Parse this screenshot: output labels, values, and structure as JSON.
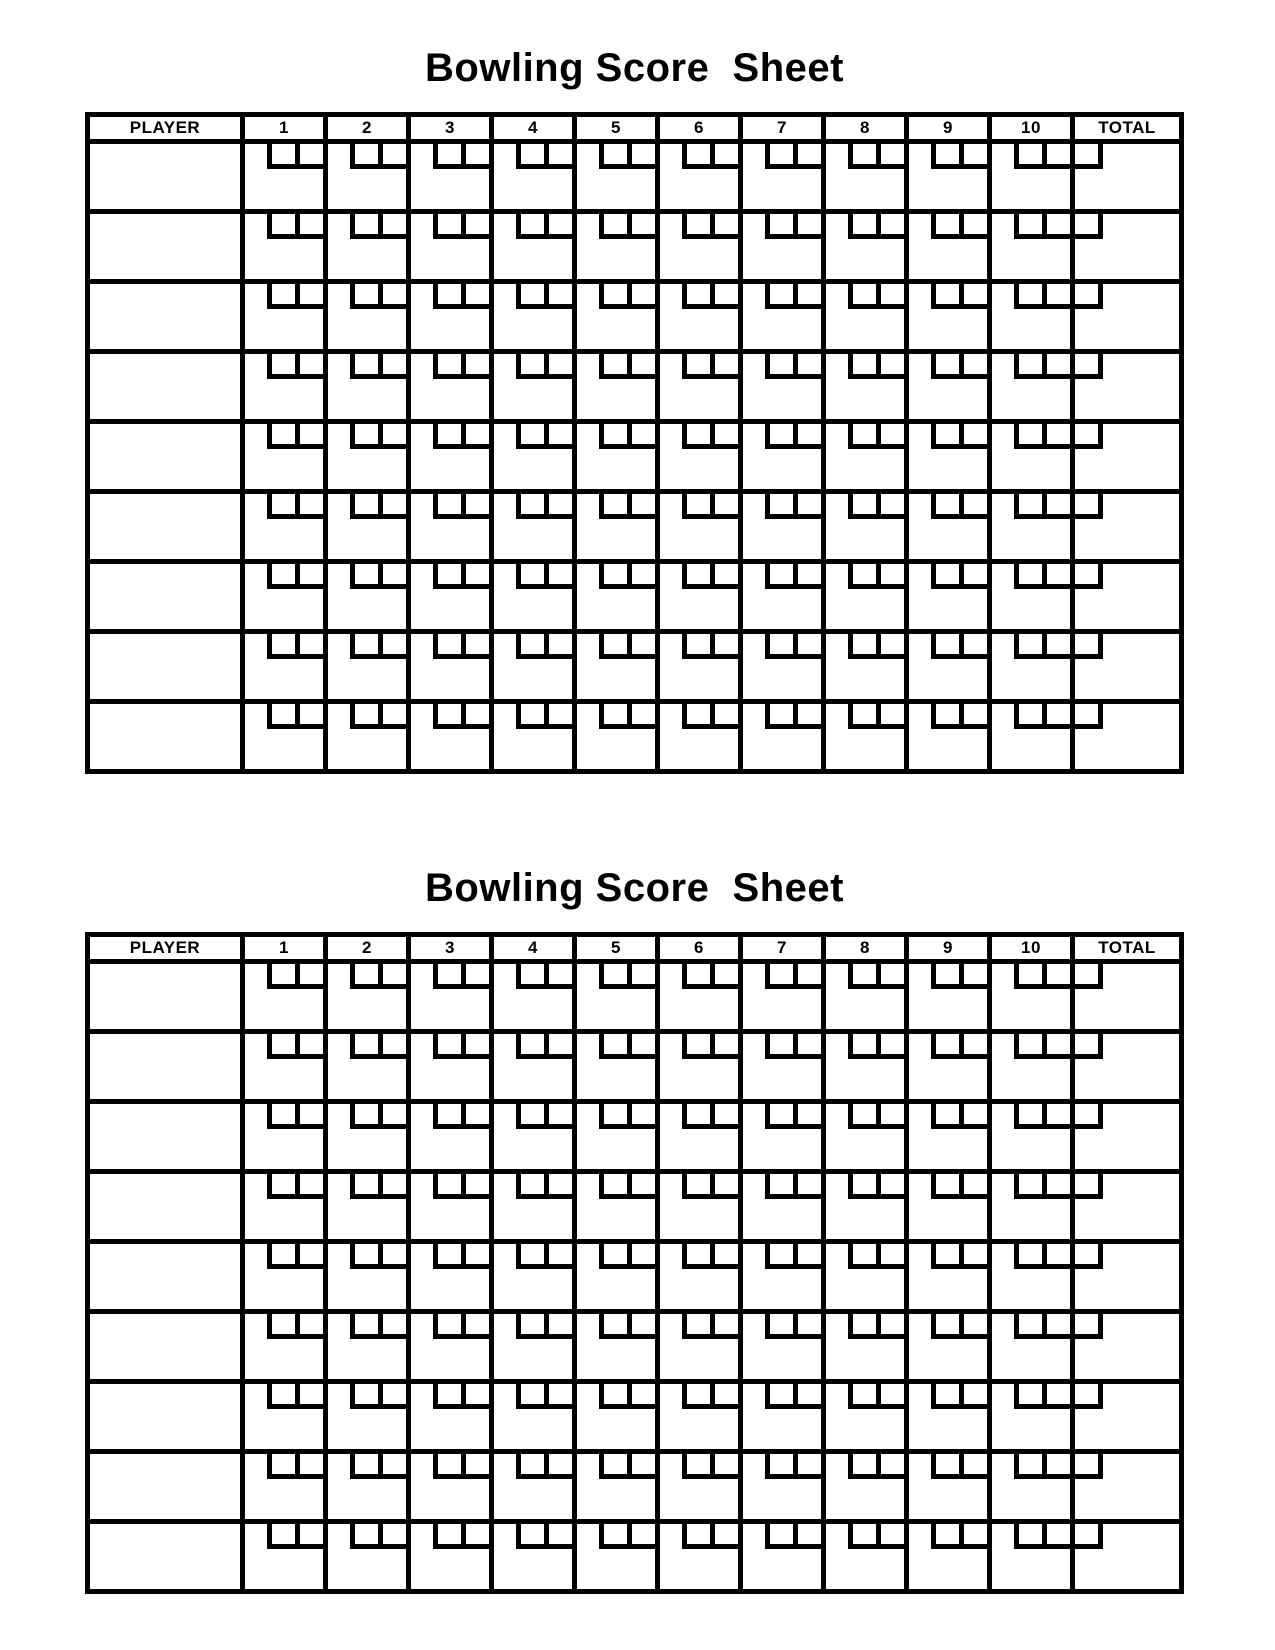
{
  "page": {
    "background_color": "#ffffff",
    "ink_color": "#000000"
  },
  "sheets": [
    {
      "title": "Bowling Score  Sheet",
      "columns": [
        "PLAYER",
        "1",
        "2",
        "3",
        "4",
        "5",
        "6",
        "7",
        "8",
        "9",
        "10",
        "TOTAL"
      ],
      "num_player_rows": 9,
      "throws_per_frame": 2,
      "throws_in_tenth_frame": 3,
      "players": [
        "",
        "",
        "",
        "",
        "",
        "",
        "",
        "",
        ""
      ],
      "totals": [
        "",
        "",
        "",
        "",
        "",
        "",
        "",
        "",
        ""
      ]
    },
    {
      "title": "Bowling Score  Sheet",
      "columns": [
        "PLAYER",
        "1",
        "2",
        "3",
        "4",
        "5",
        "6",
        "7",
        "8",
        "9",
        "10",
        "TOTAL"
      ],
      "num_player_rows": 9,
      "throws_per_frame": 2,
      "throws_in_tenth_frame": 3,
      "players": [
        "",
        "",
        "",
        "",
        "",
        "",
        "",
        "",
        ""
      ],
      "totals": [
        "",
        "",
        "",
        "",
        "",
        "",
        "",
        "",
        ""
      ]
    }
  ]
}
